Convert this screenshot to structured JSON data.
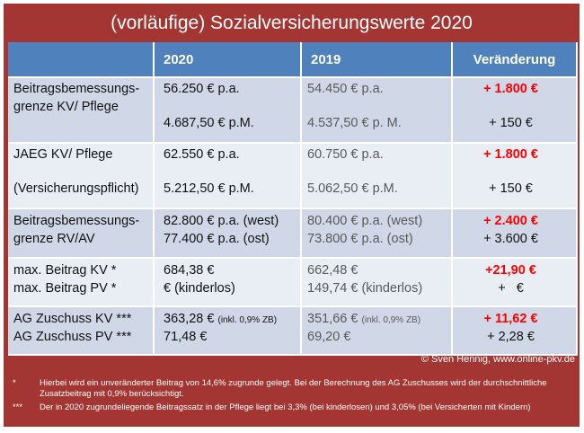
{
  "title": "(vorläufige) Sozialversicherungswerte 2020",
  "headers": [
    "",
    "2020",
    "2019",
    "Veränderung"
  ],
  "rows": {
    "r1": {
      "label": [
        "Beitragsbemessungs-",
        "grenze KV/ Pflege"
      ],
      "v2020": [
        "56.250 € p.a.",
        "4.687,50 € p.M."
      ],
      "v2019": [
        "54.450 € p.a.",
        "4.537,50 € p. M."
      ],
      "change": [
        "+ 1.800 €",
        "+ 150 €"
      ]
    },
    "r2": {
      "label": [
        "JAEG KV/ Pflege",
        "(Versicherungspflicht)"
      ],
      "v2020": [
        "62.550 € p.a.",
        "5.212,50 € p.M."
      ],
      "v2019": [
        "60.750 € p.a.",
        "5.062,50 € p.M."
      ],
      "change": [
        "+ 1.800 €",
        "+ 150 €"
      ]
    },
    "r3": {
      "label": [
        "Beitragsbemessungs-",
        "grenze RV/AV"
      ],
      "v2020": [
        "82.800 € p.a. (west)",
        "77.400 € p.a. (ost)"
      ],
      "v2019": [
        "80.400 € p.a. (west)",
        "73.800 € p.a. (ost)"
      ],
      "change": [
        "+ 2.400 €",
        "+ 3.600 €"
      ]
    },
    "r4": {
      "label": [
        "max. Beitrag KV *",
        "max. Beitrag PV *"
      ],
      "v2020": [
        "684,38 €",
        "€ (kinderlos)"
      ],
      "v2019": [
        "662,48 €",
        "149,74 € (kinderlos)"
      ],
      "change": [
        "+21,90 €",
        "+   €"
      ]
    },
    "r5": {
      "label": [
        "AG Zuschuss KV ***",
        "AG Zuschuss PV ***"
      ],
      "v2020": [
        "363,28 €",
        "71,48 €"
      ],
      "v2020_note": "(inkl. 0,9% ZB)",
      "v2019": [
        "351,66 €",
        "69,20 €"
      ],
      "v2019_note": "(inkl. 0,9% ZB)",
      "change": [
        "+ 11,62 €",
        "+ 2,28 €"
      ]
    }
  },
  "copyright": "© Sven Hennig, www.online-pkv.de",
  "footnotes": [
    {
      "mark": "*",
      "text": "Hierbei wird ein unveränderter Beitrag von 14,6% zugrunde gelegt. Bei der Berechnung des AG Zuschusses wird der durchschnittliche Zusatzbeitrag mit 0,9% berücksichtigt."
    },
    {
      "mark": "***",
      "text": "Der in 2020 zugrundeliegende Beitragssatz in der Pflege liegt bei 3,3% (bei kinderlosen) und 3,05% (bei Versicherten mit Kindern)"
    }
  ],
  "colors": {
    "frame": "#a33632",
    "header": "#4f81bd",
    "row_odd": "#d0d8e8",
    "row_even": "#e9edf4",
    "increase": "#ff0000"
  }
}
